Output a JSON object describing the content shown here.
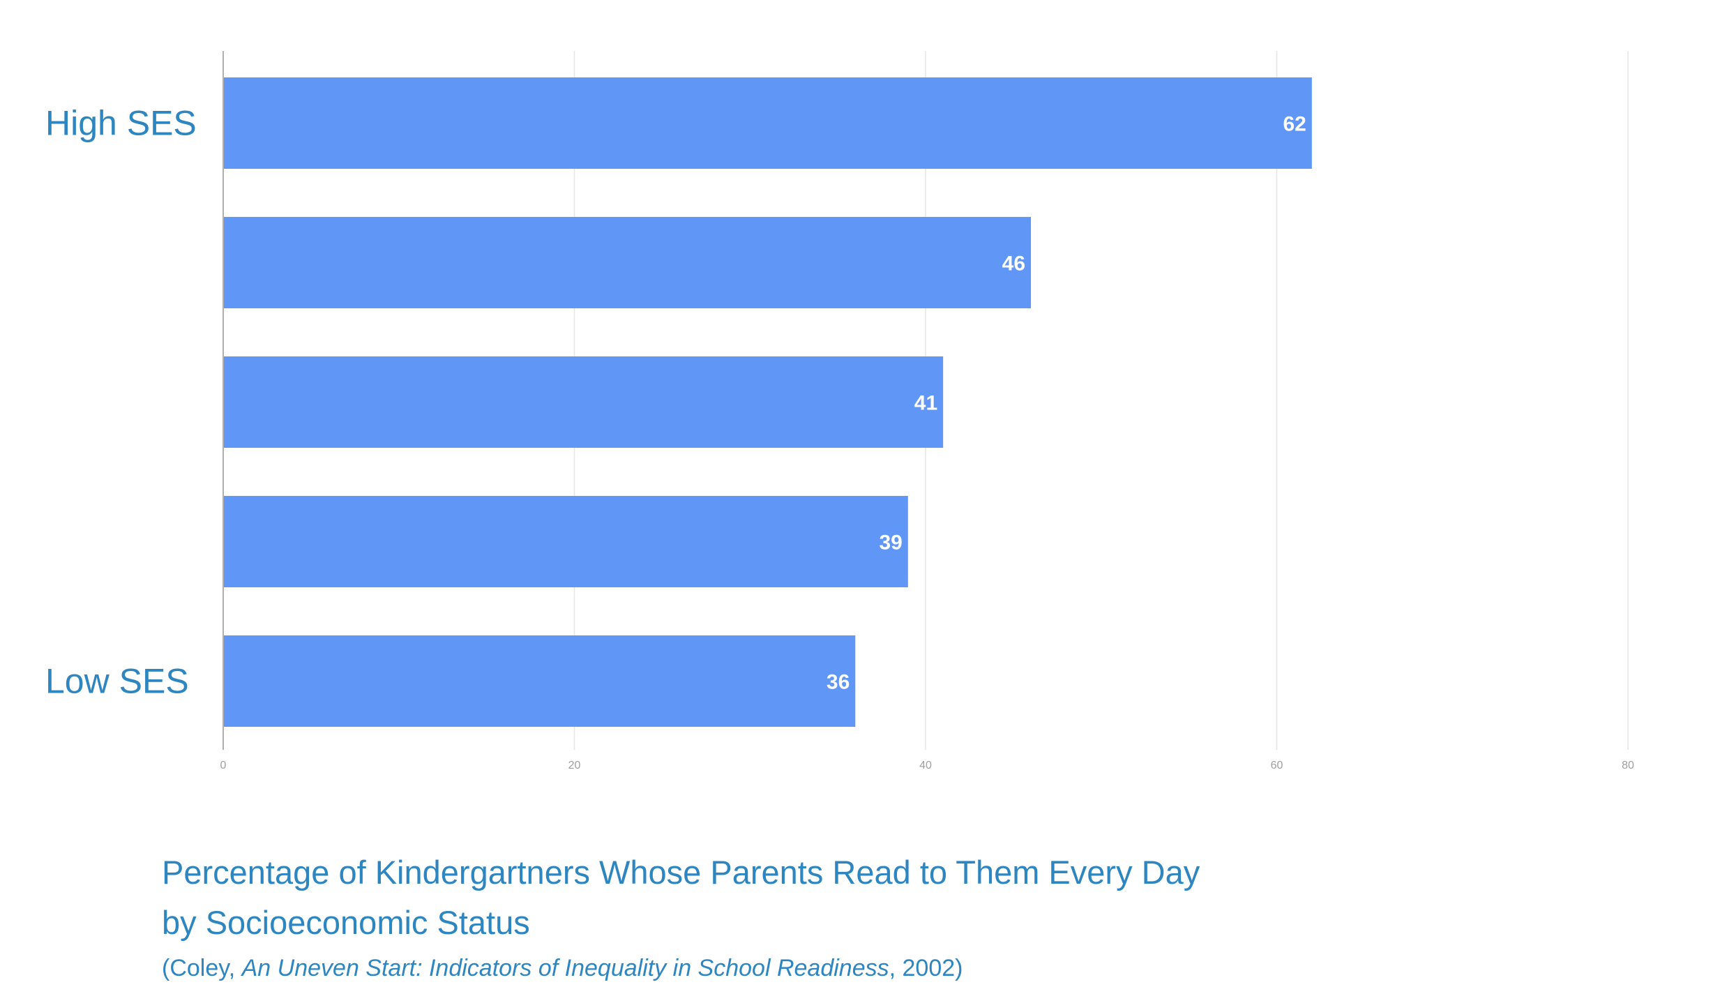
{
  "chart_data": {
    "type": "bar",
    "orientation": "horizontal",
    "categories": [
      "High SES",
      "",
      "",
      "",
      "Low SES"
    ],
    "values": [
      62,
      46,
      41,
      39,
      36
    ],
    "xlim": [
      0,
      80
    ],
    "ticks": [
      0,
      20,
      40,
      60,
      80
    ],
    "grid": true,
    "bar_color": "#6096F5",
    "label_color": "#2E86C1",
    "title_line1": "Percentage of Kindergartners Whose Parents Read to Them Every Day",
    "title_line2": "by Socioeconomic Status",
    "source": {
      "prefix": "(Coley, ",
      "work": "An Uneven Start: Indicators of Inequality in School Readiness",
      "suffix": ", 2002)"
    }
  }
}
